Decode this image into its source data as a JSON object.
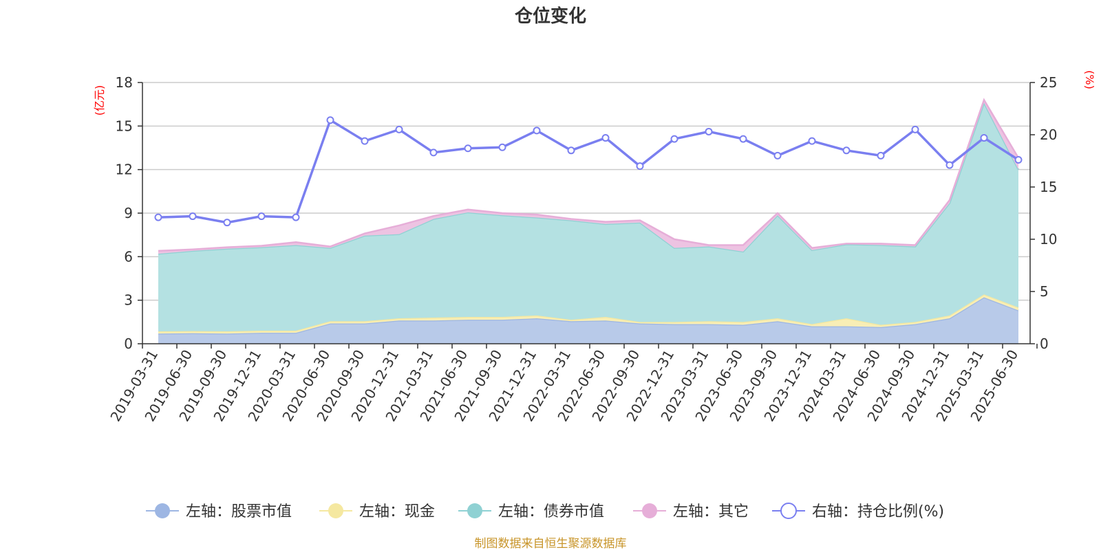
{
  "chart_data": {
    "type": "area",
    "title": "仓位变化",
    "left_axis_unit": "(亿元)",
    "right_axis_unit": "(%)",
    "left_axis": {
      "min": 0,
      "max": 18,
      "ticks": [
        "0",
        "3",
        "6",
        "9",
        "12",
        "15",
        "18"
      ]
    },
    "right_axis": {
      "min": 0,
      "max": 25,
      "ticks": [
        "0",
        "5",
        "10",
        "15",
        "20",
        "25"
      ]
    },
    "categories": [
      "2019-03-31",
      "2019-06-30",
      "2019-09-30",
      "2019-12-31",
      "2020-03-31",
      "2020-06-30",
      "2020-09-30",
      "2020-12-31",
      "2021-03-31",
      "2021-06-30",
      "2021-09-30",
      "2021-12-31",
      "2022-03-31",
      "2022-06-30",
      "2022-09-30",
      "2022-12-31",
      "2023-03-31",
      "2023-06-30",
      "2023-09-30",
      "2023-12-31",
      "2024-03-31",
      "2024-06-30",
      "2024-09-30",
      "2024-12-31",
      "2025-03-31",
      "2025-06-30"
    ],
    "series": [
      {
        "name": "左轴：股票市值",
        "axis": "left",
        "stacked": true,
        "color": "#9db6e3",
        "fill": "#b8cae9",
        "values": [
          0.7,
          0.72,
          0.7,
          0.75,
          0.75,
          1.4,
          1.4,
          1.6,
          1.6,
          1.65,
          1.65,
          1.75,
          1.55,
          1.6,
          1.4,
          1.35,
          1.35,
          1.3,
          1.55,
          1.2,
          1.2,
          1.15,
          1.35,
          1.75,
          3.2,
          2.3
        ]
      },
      {
        "name": "左轴：现金",
        "axis": "left",
        "stacked": true,
        "color": "#f5e8a0",
        "fill": "#f8eeb5",
        "values": [
          0.15,
          0.15,
          0.15,
          0.15,
          0.15,
          0.15,
          0.15,
          0.15,
          0.2,
          0.2,
          0.2,
          0.2,
          0.1,
          0.25,
          0.1,
          0.15,
          0.2,
          0.2,
          0.2,
          0.15,
          0.55,
          0.15,
          0.15,
          0.2,
          0.2,
          0.2
        ]
      },
      {
        "name": "左轴：债券市值",
        "axis": "left",
        "stacked": true,
        "color": "#8fd1d3",
        "fill": "#b4e1e2",
        "values": [
          5.35,
          5.53,
          5.7,
          5.75,
          5.9,
          5.05,
          5.9,
          5.8,
          6.8,
          7.2,
          7.0,
          6.75,
          6.85,
          6.4,
          6.85,
          5.1,
          5.15,
          4.85,
          7.1,
          5.1,
          5.1,
          5.5,
          5.2,
          7.75,
          13.2,
          9.5
        ]
      },
      {
        "name": "左轴：其它",
        "axis": "left",
        "stacked": true,
        "color": "#e6aed8",
        "fill": "#edc3e2",
        "values": [
          0.2,
          0.1,
          0.1,
          0.1,
          0.2,
          0.1,
          0.15,
          0.6,
          0.2,
          0.2,
          0.15,
          0.2,
          0.1,
          0.15,
          0.15,
          0.6,
          0.1,
          0.45,
          0.15,
          0.15,
          0.05,
          0.1,
          0.1,
          0.2,
          0.2,
          0.8
        ]
      },
      {
        "name": "右轴：持仓比例(%)",
        "axis": "right",
        "stacked": false,
        "color": "#7a7ff0",
        "values": [
          12.1,
          12.2,
          11.6,
          12.2,
          12.1,
          21.4,
          19.4,
          20.5,
          18.3,
          18.7,
          18.8,
          20.4,
          18.5,
          19.7,
          17.0,
          19.6,
          20.3,
          19.6,
          18.0,
          19.4,
          18.5,
          18.0,
          20.5,
          17.1,
          19.7,
          17.6
        ]
      }
    ],
    "legend_position": "bottom",
    "grid": true
  },
  "source_note": "制图数据来自恒生聚源数据库"
}
